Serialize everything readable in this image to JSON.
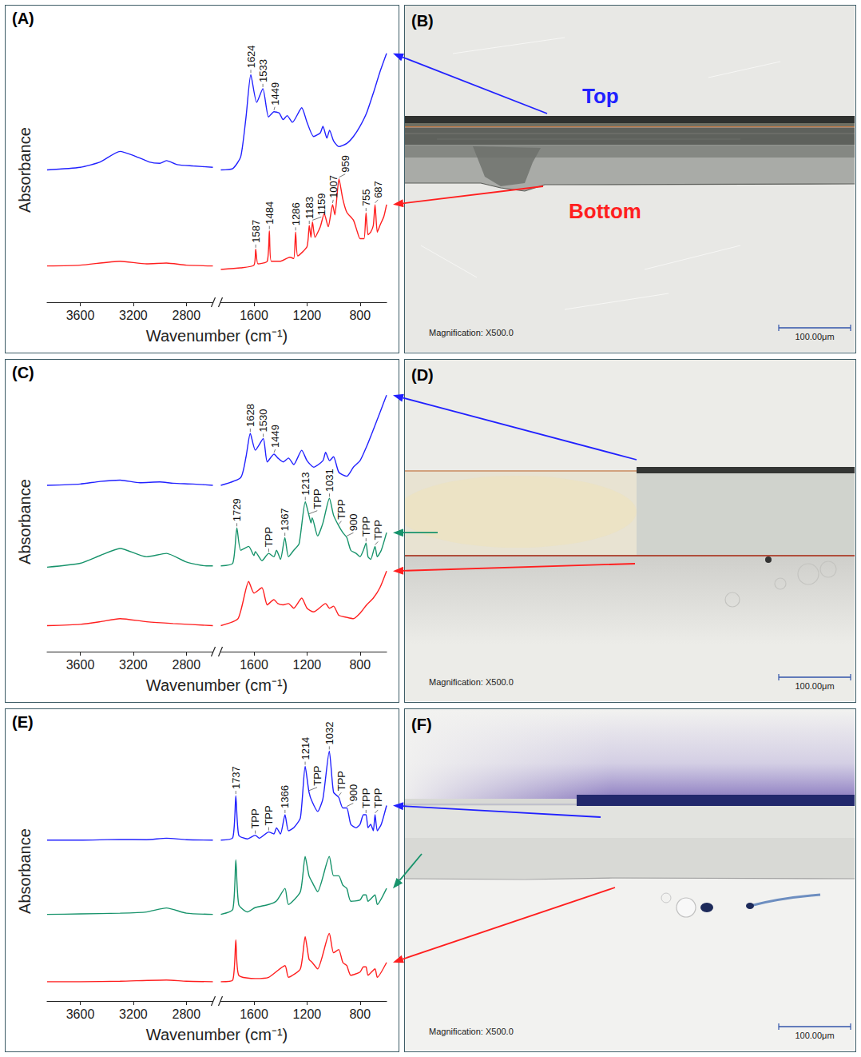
{
  "chart_data": [
    {
      "type": "line",
      "panel": "(A)",
      "xlabel": "Wavenumber (cm⁻¹)",
      "ylabel": "Absorbance",
      "xlim": [
        3850,
        600
      ],
      "xbreak": [
        2600,
        1850
      ],
      "xticks": [
        3600,
        3200,
        2800,
        1600,
        1200,
        800
      ],
      "ylim": [
        0,
        100
      ],
      "tick_labels": "x",
      "grid": false,
      "series": [
        {
          "color": "#2121ff",
          "x": [
            3850,
            3600,
            3450,
            3300,
            3200,
            3080,
            3000,
            2950,
            2870,
            2750,
            2600,
            1850,
            1760,
            1700,
            1660,
            1624,
            1580,
            1533,
            1490,
            1449,
            1410,
            1380,
            1350,
            1310,
            1240,
            1200,
            1150,
            1100,
            1080,
            1050,
            1030,
            1000,
            960,
            900,
            850,
            800,
            750,
            700,
            650,
            600
          ],
          "values": [
            50,
            51,
            53,
            57,
            55.5,
            53,
            52.5,
            53.5,
            52,
            51.5,
            51,
            50,
            50.5,
            55,
            70,
            86,
            75.5,
            80.7,
            70,
            72,
            71.5,
            69,
            70.5,
            68,
            73.5,
            68,
            62.6,
            64,
            66.5,
            62,
            65,
            61,
            58.8,
            60,
            62.6,
            66.5,
            71.6,
            79,
            87,
            94
          ],
          "annotations": [
            {
              "x": 1624,
              "text": "1624"
            },
            {
              "x": 1533,
              "text": "1533"
            },
            {
              "x": 1449,
              "text": "1449"
            }
          ]
        },
        {
          "color": "#ff1f1f",
          "x": [
            3850,
            3600,
            3300,
            3100,
            2950,
            2800,
            2600,
            1850,
            1700,
            1600,
            1587,
            1570,
            1500,
            1484,
            1470,
            1400,
            1330,
            1300,
            1286,
            1270,
            1200,
            1183,
            1170,
            1159,
            1140,
            1100,
            1070,
            1040,
            1007,
            990,
            959,
            930,
            900,
            850,
            820,
            800,
            770,
            755,
            740,
            720,
            700,
            687,
            670,
            650,
            620,
            600
          ],
          "values": [
            13.7,
            14,
            15.5,
            14.5,
            14.8,
            14,
            13.7,
            12.4,
            13,
            14,
            20,
            14.5,
            15.5,
            27,
            15.5,
            15.5,
            17,
            16.5,
            26.5,
            17.5,
            21,
            29,
            24.5,
            30.4,
            24.5,
            28.5,
            33.5,
            28.5,
            36.9,
            33,
            46.6,
            39,
            34,
            31,
            26.5,
            24,
            24,
            33.8,
            25.5,
            26.5,
            29,
            36.9,
            26.5,
            29,
            32.5,
            36.9
          ],
          "annotations": [
            {
              "x": 1587,
              "text": "1587"
            },
            {
              "x": 1484,
              "text": "1484"
            },
            {
              "x": 1286,
              "text": "1286"
            },
            {
              "x": 1183,
              "text": "1183"
            },
            {
              "x": 1159,
              "text": "1159"
            },
            {
              "x": 1007,
              "text": "1007"
            },
            {
              "x": 959,
              "text": "959"
            },
            {
              "x": 755,
              "text": "755"
            },
            {
              "x": 687,
              "text": "687"
            }
          ]
        }
      ]
    },
    {
      "type": "line",
      "panel": "(C)",
      "xlabel": "Wavenumber (cm⁻¹)",
      "ylabel": "Absorbance",
      "xlim": [
        3850,
        600
      ],
      "xbreak": [
        2600,
        1850
      ],
      "xticks": [
        3600,
        3200,
        2800,
        1600,
        1200,
        800
      ],
      "ylim": [
        0,
        100
      ],
      "tick_labels": "x",
      "grid": false,
      "series": [
        {
          "color": "#2121ff",
          "x": [
            3850,
            3600,
            3450,
            3300,
            3150,
            3000,
            2900,
            2750,
            2600,
            1850,
            1700,
            1660,
            1628,
            1590,
            1530,
            1500,
            1449,
            1420,
            1380,
            1340,
            1300,
            1240,
            1200,
            1150,
            1080,
            1060,
            1030,
            1000,
            960,
            900,
            850,
            800,
            750,
            700,
            650,
            600
          ],
          "values": [
            64,
            64.5,
            65.5,
            66,
            65,
            65.3,
            64.8,
            64.5,
            64,
            64,
            67,
            75,
            84,
            77.5,
            82,
            73,
            76,
            74.5,
            73,
            74.5,
            72,
            77.5,
            73.5,
            71,
            73.5,
            76.7,
            73.5,
            75,
            69,
            67.5,
            71,
            73.5,
            79,
            85.4,
            92,
            98.7
          ],
          "annotations": [
            {
              "x": 1628,
              "text": "1628"
            },
            {
              "x": 1530,
              "text": "1530"
            },
            {
              "x": 1449,
              "text": "1449"
            }
          ]
        },
        {
          "color": "#17936b",
          "x": [
            3850,
            3600,
            3450,
            3300,
            3100,
            2950,
            2800,
            2650,
            2600,
            1850,
            1760,
            1729,
            1700,
            1640,
            1600,
            1590,
            1540,
            1489,
            1450,
            1430,
            1400,
            1367,
            1340,
            1300,
            1260,
            1213,
            1185,
            1170,
            1161,
            1120,
            1080,
            1031,
            1000,
            961,
            930,
            900,
            870,
            830,
            800,
            775,
            755,
            740,
            720,
            687,
            670,
            640,
            600
          ],
          "values": [
            32.5,
            34,
            37,
            39.7,
            36.5,
            37.8,
            34.5,
            33,
            33,
            33,
            34,
            47.6,
            39,
            40.5,
            37,
            38.5,
            35,
            37.8,
            36.5,
            39,
            35.5,
            43.9,
            36.5,
            39,
            41.5,
            57.7,
            52.4,
            49.5,
            51.5,
            44.5,
            49.5,
            59,
            52.5,
            48.4,
            45.8,
            43.9,
            39,
            37.8,
            36.5,
            39,
            41.8,
            36.5,
            35.5,
            40.5,
            36.5,
            39,
            45.8
          ],
          "annotations": [
            {
              "x": 1729,
              "text": "1729"
            },
            {
              "x": 1489,
              "text": "TPP"
            },
            {
              "x": 1367,
              "text": "1367"
            },
            {
              "x": 1213,
              "text": "1213"
            },
            {
              "x": 1185,
              "text": "TPP"
            },
            {
              "x": 1031,
              "text": "1031"
            },
            {
              "x": 961,
              "text": "TPP"
            },
            {
              "x": 900,
              "text": "900"
            },
            {
              "x": 755,
              "text": "TPP"
            },
            {
              "x": 687,
              "text": "TPP"
            }
          ]
        },
        {
          "color": "#ff1f1f",
          "x": [
            3850,
            3600,
            3450,
            3300,
            3100,
            2900,
            2600,
            1850,
            1720,
            1640,
            1600,
            1540,
            1500,
            1450,
            1420,
            1380,
            1340,
            1300,
            1240,
            1200,
            1150,
            1060,
            1030,
            1000,
            960,
            900,
            850,
            800,
            750,
            700,
            650,
            600
          ],
          "values": [
            10,
            10.5,
            11.5,
            12.7,
            11.5,
            10.8,
            10,
            10,
            12.7,
            27,
            22.5,
            24.6,
            18,
            20,
            18.5,
            18,
            18.5,
            16.7,
            20.6,
            16.7,
            15.3,
            18.5,
            16.7,
            17.5,
            14,
            13.2,
            12.7,
            14.8,
            18,
            20.6,
            24.6,
            31
          ]
        }
      ]
    },
    {
      "type": "line",
      "panel": "(E)",
      "xlabel": "Wavenumber (cm⁻¹)",
      "ylabel": "Absorbance",
      "xlim": [
        3850,
        600
      ],
      "xbreak": [
        2600,
        1850
      ],
      "xticks": [
        3600,
        3200,
        2800,
        1600,
        1200,
        800
      ],
      "ylim": [
        0,
        105
      ],
      "tick_labels": "x",
      "grid": false,
      "series": [
        {
          "color": "#2121ff",
          "x": [
            3850,
            3600,
            3300,
            3100,
            2950,
            2800,
            2600,
            1850,
            1760,
            1737,
            1715,
            1650,
            1590,
            1560,
            1489,
            1450,
            1430,
            1400,
            1366,
            1340,
            1300,
            1250,
            1214,
            1185,
            1161,
            1120,
            1080,
            1032,
            1000,
            961,
            930,
            900,
            870,
            830,
            800,
            775,
            755,
            740,
            720,
            700,
            687,
            670,
            640,
            600
          ],
          "values": [
            65,
            65,
            65.3,
            65.2,
            65.8,
            65.2,
            65,
            65,
            66,
            83,
            67,
            65.5,
            67,
            65.8,
            68.3,
            67.5,
            70,
            67.5,
            75.3,
            68.8,
            70,
            74,
            94.8,
            84.4,
            80.5,
            76.6,
            81.8,
            101,
            84.4,
            82.3,
            78,
            78,
            71.4,
            70,
            71.4,
            75.3,
            75.3,
            70,
            71.4,
            68.8,
            75.3,
            68.8,
            71.4,
            79
          ],
          "annotations": [
            {
              "x": 1737,
              "text": "1737"
            },
            {
              "x": 1590,
              "text": "TPP"
            },
            {
              "x": 1489,
              "text": "TPP"
            },
            {
              "x": 1366,
              "text": "1366"
            },
            {
              "x": 1214,
              "text": "1214"
            },
            {
              "x": 1185,
              "text": "TPP"
            },
            {
              "x": 1032,
              "text": "1032"
            },
            {
              "x": 961,
              "text": "TPP"
            },
            {
              "x": 900,
              "text": "900"
            },
            {
              "x": 755,
              "text": "TPP"
            },
            {
              "x": 687,
              "text": "TPP"
            }
          ]
        },
        {
          "color": "#17936b",
          "x": [
            3850,
            3600,
            3300,
            3100,
            2950,
            2800,
            2600,
            1850,
            1760,
            1737,
            1715,
            1650,
            1590,
            1489,
            1430,
            1366,
            1340,
            1250,
            1214,
            1185,
            1161,
            1120,
            1032,
            1000,
            961,
            930,
            900,
            870,
            800,
            775,
            755,
            740,
            687,
            670,
            600
          ],
          "values": [
            35,
            35.2,
            35.5,
            36,
            37.6,
            35.5,
            35,
            35,
            37,
            57,
            39,
            36,
            37.8,
            39,
            40.5,
            45.5,
            39,
            44.2,
            58.4,
            50.6,
            48,
            44.2,
            58.4,
            50.6,
            50.6,
            46.8,
            45.5,
            40.3,
            40.8,
            42.9,
            42.9,
            40.3,
            42.9,
            39,
            45.5
          ]
        },
        {
          "color": "#ff1f1f",
          "x": [
            3850,
            3600,
            3300,
            2950,
            2800,
            2600,
            1850,
            1760,
            1737,
            1715,
            1590,
            1489,
            1366,
            1340,
            1250,
            1214,
            1185,
            1161,
            1120,
            1032,
            1000,
            961,
            930,
            900,
            870,
            800,
            775,
            755,
            740,
            687,
            670,
            600
          ],
          "values": [
            7.8,
            7.8,
            8,
            8.5,
            8,
            7.8,
            7.8,
            8.5,
            24.7,
            10.4,
            9.1,
            9.6,
            14.3,
            9.6,
            13,
            26,
            16.9,
            15.6,
            13,
            27.3,
            19.5,
            20.8,
            15.6,
            14.3,
            10.4,
            11.7,
            13.8,
            13.8,
            10.4,
            13,
            9.6,
            15.6
          ]
        }
      ]
    }
  ],
  "images": [
    {
      "panel": "(B)",
      "labels": [
        {
          "text": "Top",
          "color": "#2121ff"
        },
        {
          "text": "Bottom",
          "color": "#ff1f1f"
        }
      ],
      "magnification": "Magnification: X500.0",
      "scale_bar": "100.00μm"
    },
    {
      "panel": "(D)",
      "magnification": "Magnification: X500.0",
      "scale_bar": "100.00μm"
    },
    {
      "panel": "(F)",
      "magnification": "Magnification: X500.0",
      "scale_bar": "100.00μm"
    }
  ]
}
